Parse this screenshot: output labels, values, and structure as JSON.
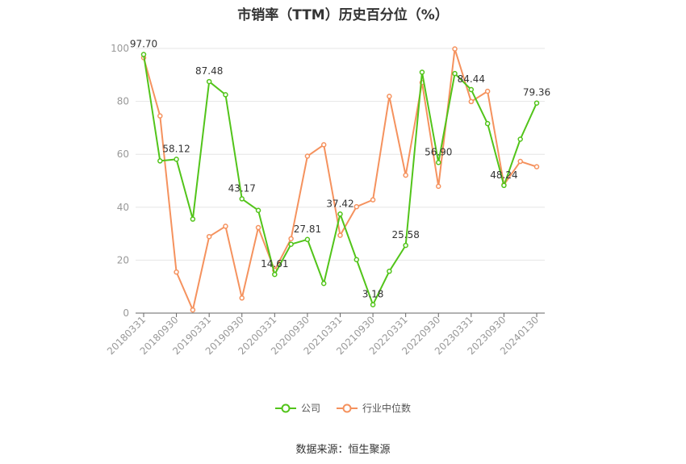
{
  "chart_data": {
    "type": "line",
    "title": "市销率（TTM）历史百分位（%）",
    "ylim": [
      0,
      100
    ],
    "yticks": [
      0,
      20,
      40,
      60,
      80,
      100
    ],
    "x": [
      "20180331",
      "20180630",
      "20180930",
      "20181231",
      "20190331",
      "20190630",
      "20190930",
      "20191231",
      "20200331",
      "20200630",
      "20200930",
      "20201231",
      "20210331",
      "20210630",
      "20210930",
      "20211231",
      "20220331",
      "20220630",
      "20220930",
      "20221231",
      "20230331",
      "20230630",
      "20230930",
      "20231231",
      "20240130"
    ],
    "x_tick_labels": [
      "20180331",
      "20180930",
      "20190331",
      "20190930",
      "20200331",
      "20200930",
      "20210331",
      "20210930",
      "20220331",
      "20220930",
      "20230331",
      "20230930",
      "20240130"
    ],
    "series": [
      {
        "name": "公司",
        "color": "#52c41a",
        "values": [
          97.7,
          57.5,
          58.12,
          35.5,
          87.48,
          82.5,
          43.17,
          38.8,
          14.61,
          26.0,
          27.81,
          11.2,
          37.42,
          20.2,
          3.18,
          15.8,
          25.58,
          91.0,
          56.9,
          90.5,
          84.44,
          71.6,
          48.24,
          65.7,
          79.36
        ]
      },
      {
        "name": "行业中位数",
        "color": "#f5925e",
        "values": [
          96.5,
          74.5,
          15.5,
          1.2,
          28.9,
          32.8,
          5.7,
          32.3,
          16.2,
          28.1,
          59.3,
          63.6,
          29.4,
          40.2,
          42.8,
          81.9,
          52.1,
          87.1,
          47.9,
          99.8,
          79.9,
          83.8,
          48.5,
          57.3,
          55.3
        ]
      }
    ],
    "data_labels": [
      {
        "index": 0,
        "text": "97.70"
      },
      {
        "index": 2,
        "text": "58.12"
      },
      {
        "index": 4,
        "text": "87.48"
      },
      {
        "index": 6,
        "text": "43.17"
      },
      {
        "index": 8,
        "text": "14.61"
      },
      {
        "index": 10,
        "text": "27.81"
      },
      {
        "index": 12,
        "text": "37.42"
      },
      {
        "index": 14,
        "text": "3.18"
      },
      {
        "index": 16,
        "text": "25.58"
      },
      {
        "index": 18,
        "text": "56.90"
      },
      {
        "index": 20,
        "text": "84.44"
      },
      {
        "index": 22,
        "text": "48.24"
      },
      {
        "index": 24,
        "text": "79.36"
      }
    ],
    "grid": true,
    "legend_position": "bottom"
  },
  "legend": {
    "company": "公司",
    "industry": "行业中位数"
  },
  "source": "数据来源：恒生聚源"
}
